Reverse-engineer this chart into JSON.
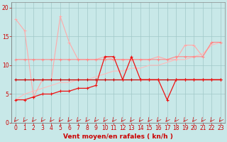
{
  "x": [
    0,
    1,
    2,
    3,
    4,
    5,
    6,
    7,
    8,
    9,
    10,
    11,
    12,
    13,
    14,
    15,
    16,
    17,
    18,
    19,
    20,
    21,
    22,
    23
  ],
  "y_spiky_light": [
    18.0,
    16.0,
    4.5,
    7.5,
    7.5,
    18.5,
    14.0,
    11.0,
    11.0,
    11.0,
    11.5,
    11.0,
    11.0,
    11.0,
    11.0,
    11.0,
    11.5,
    11.0,
    11.0,
    13.5,
    13.5,
    11.5,
    14.0,
    14.0
  ],
  "y_flat_pink": [
    11.0,
    11.0,
    11.0,
    11.0,
    11.0,
    11.0,
    11.0,
    11.0,
    11.0,
    11.0,
    11.0,
    11.0,
    11.0,
    11.0,
    11.0,
    11.0,
    11.0,
    11.0,
    11.5,
    11.5,
    11.5,
    11.5,
    14.0,
    14.0
  ],
  "y_slope_pale": [
    4.0,
    5.0,
    5.5,
    6.0,
    6.5,
    7.0,
    7.0,
    7.5,
    7.5,
    8.0,
    8.5,
    9.0,
    9.0,
    9.5,
    9.5,
    10.0,
    10.0,
    10.5,
    11.0,
    11.0,
    11.5,
    12.0,
    13.5,
    14.0
  ],
  "y_flat_red": [
    7.5,
    7.5,
    7.5,
    7.5,
    7.5,
    7.5,
    7.5,
    7.5,
    7.5,
    7.5,
    7.5,
    7.5,
    7.5,
    7.5,
    7.5,
    7.5,
    7.5,
    7.5,
    7.5,
    7.5,
    7.5,
    7.5,
    7.5,
    7.5
  ],
  "y_vary_dark": [
    4.0,
    4.0,
    4.5,
    5.0,
    5.0,
    5.5,
    5.5,
    6.0,
    6.0,
    6.5,
    11.5,
    11.5,
    7.5,
    11.5,
    7.5,
    7.5,
    7.5,
    4.0,
    7.5,
    7.5,
    7.5,
    7.5,
    7.5,
    7.5
  ],
  "bg_color": "#c8e8e8",
  "grid_color": "#a0c8c8",
  "xlabel": "Vent moyen/en rafales ( kn/h )",
  "ylim": [
    0,
    21
  ],
  "xlim": [
    -0.5,
    23.5
  ],
  "yticks": [
    0,
    5,
    10,
    15,
    20
  ],
  "xticks": [
    0,
    1,
    2,
    3,
    4,
    5,
    6,
    7,
    8,
    9,
    10,
    11,
    12,
    13,
    14,
    15,
    16,
    17,
    18,
    19,
    20,
    21,
    22,
    23
  ],
  "tick_fontsize": 5.5,
  "label_fontsize": 6.5,
  "color_spiky_light": "#ffaaaa",
  "color_flat_pink": "#ff8888",
  "color_slope_pale": "#ffbbbb",
  "color_flat_red": "#cc0000",
  "color_vary_dark": "#ee1111"
}
